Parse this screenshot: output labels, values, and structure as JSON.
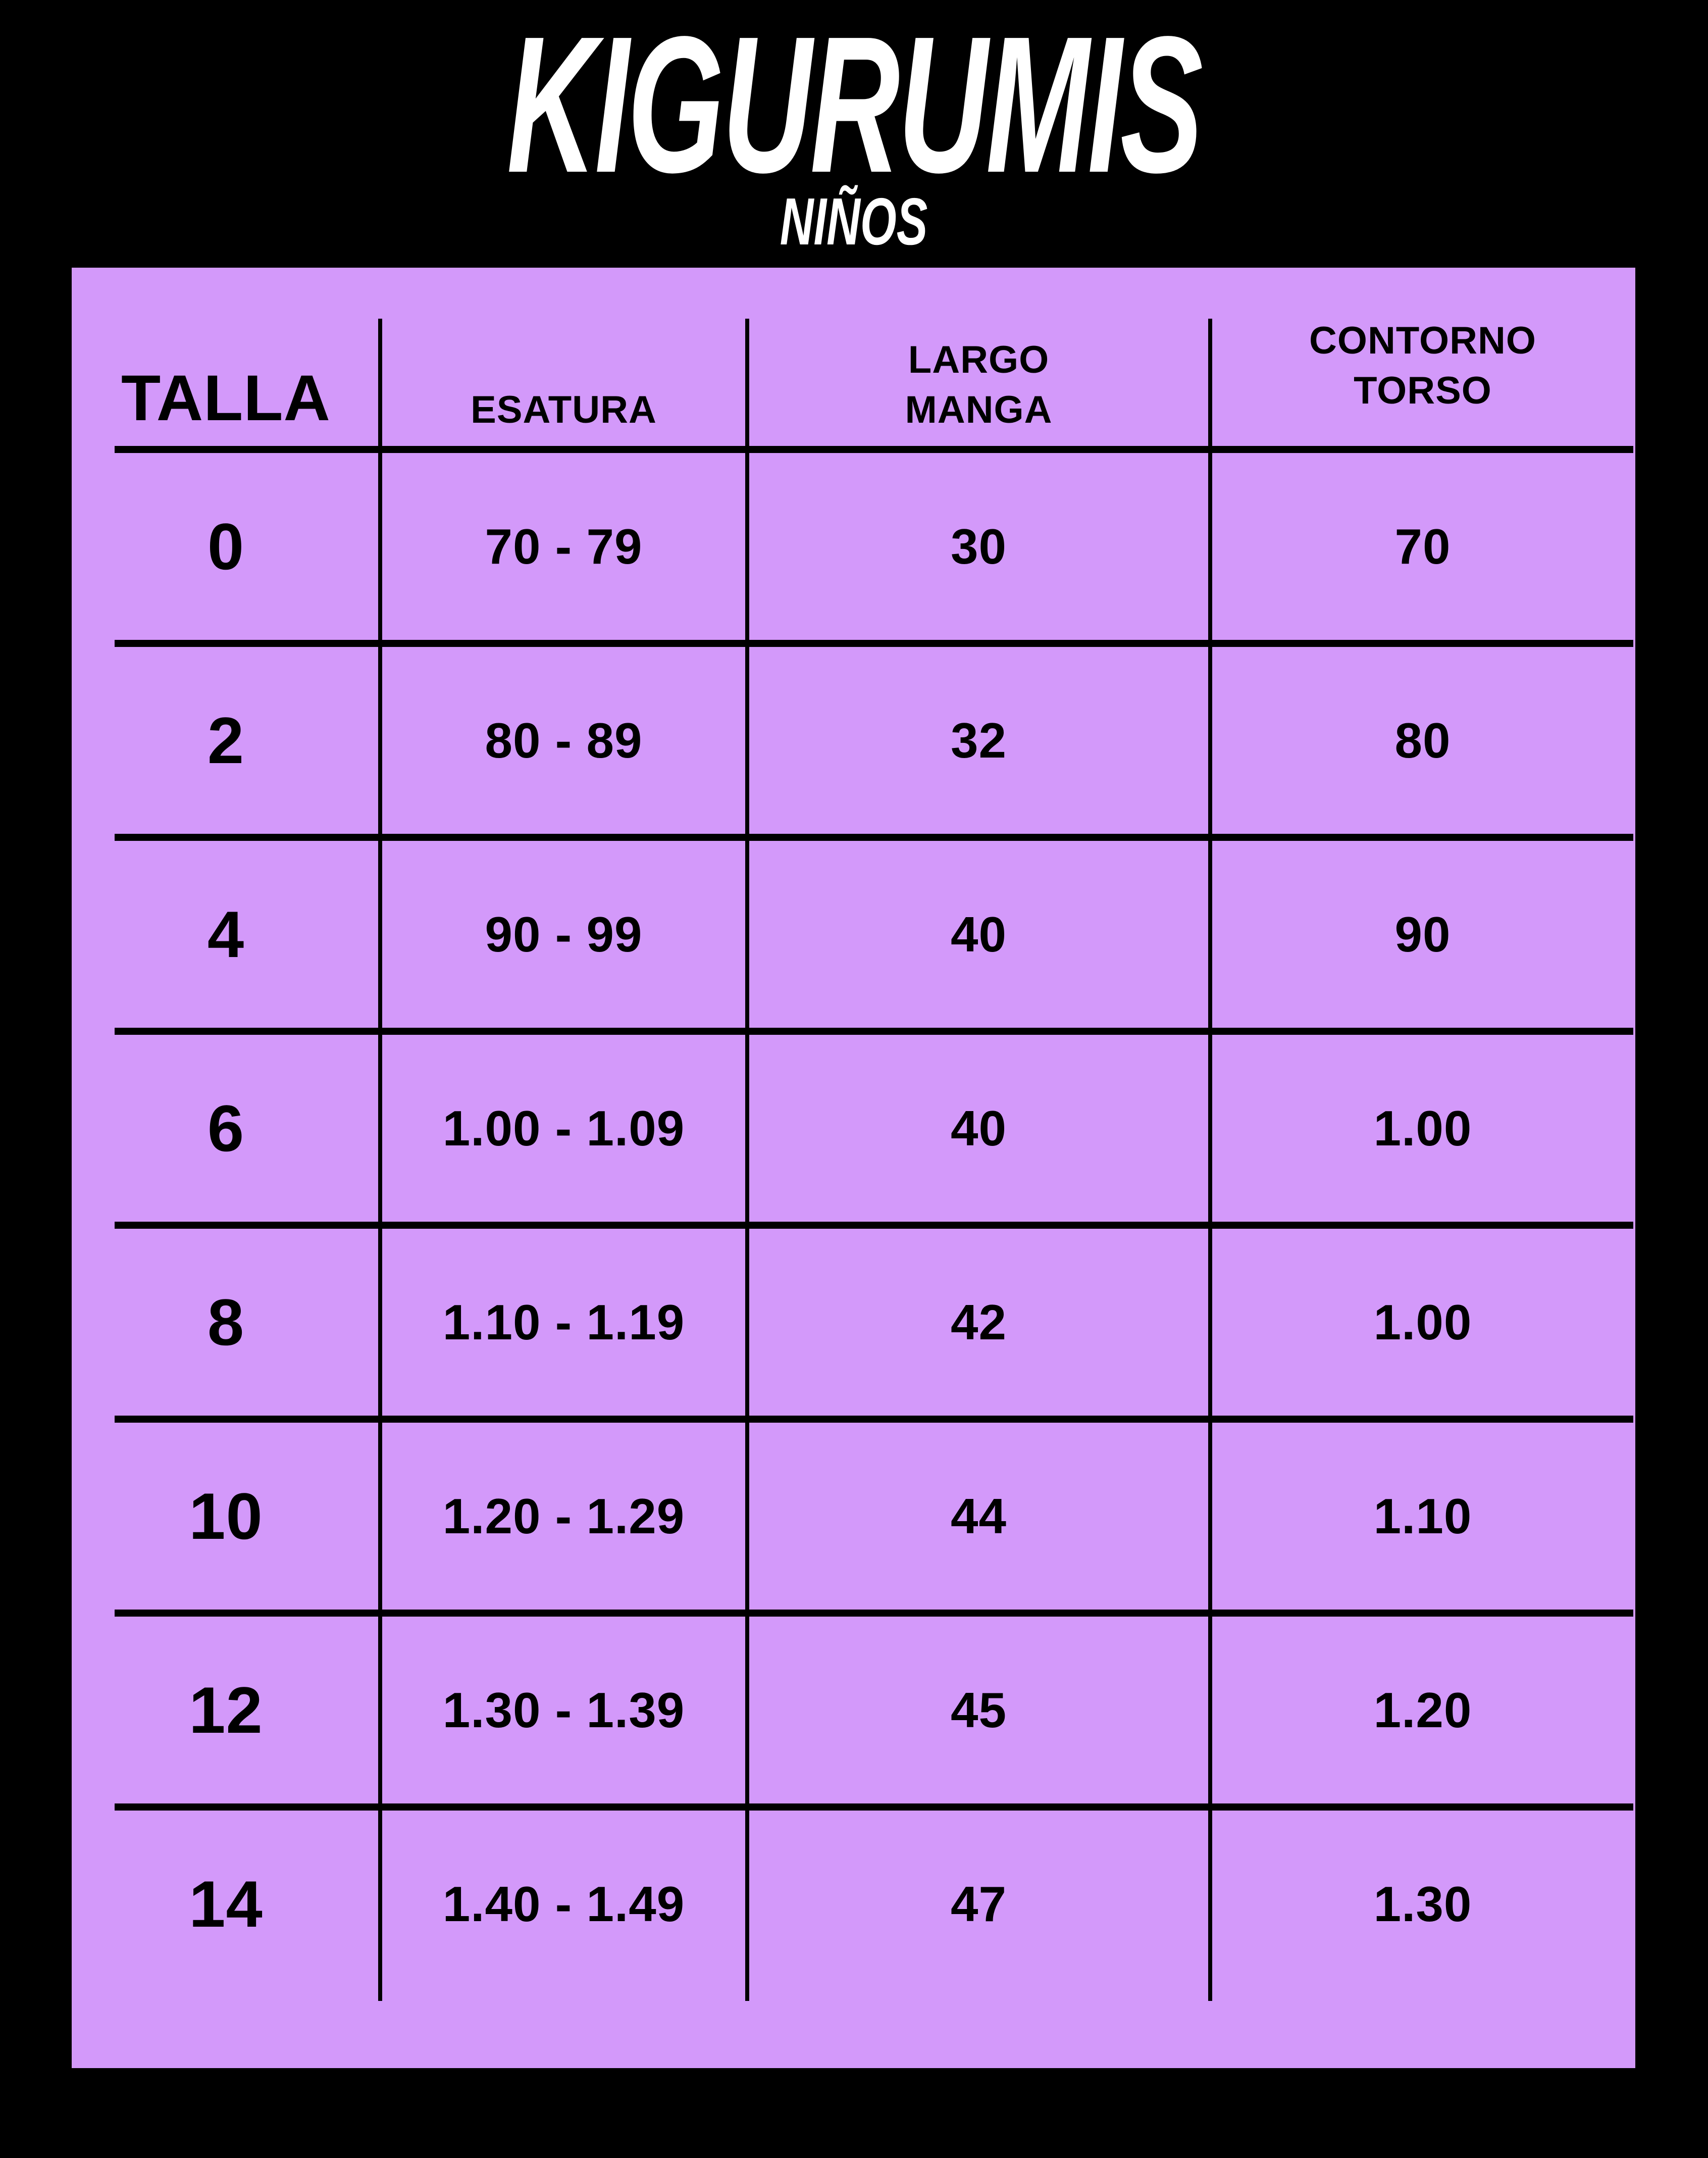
{
  "title": "KIGURUMIS",
  "subtitle": "NIÑOS",
  "colors": {
    "background": "#000000",
    "panel": "#d399fa",
    "ink": "#000000",
    "title_text": "#ffffff"
  },
  "header_display": [
    "TALLA",
    "ESATURA",
    "LARGO\nMANGA",
    "CONTORNO\nTORSO"
  ],
  "chart_data": {
    "type": "table",
    "title": "KIGURUMIS",
    "subtitle": "NIÑOS",
    "columns": [
      "TALLA",
      "ESATURA",
      "LARGO MANGA",
      "CONTORNO TORSO"
    ],
    "rows": [
      [
        "0",
        "70 - 79",
        "30",
        "70"
      ],
      [
        "2",
        "80 - 89",
        "32",
        "80"
      ],
      [
        "4",
        "90 - 99",
        "40",
        "90"
      ],
      [
        "6",
        "1.00 - 1.09",
        "40",
        "1.00"
      ],
      [
        "8",
        "1.10 - 1.19",
        "42",
        "1.00"
      ],
      [
        "10",
        "1.20 - 1.29",
        "44",
        "1.10"
      ],
      [
        "12",
        "1.30 - 1.39",
        "45",
        "1.20"
      ],
      [
        "14",
        "1.40 - 1.49",
        "47",
        "1.30"
      ]
    ]
  }
}
